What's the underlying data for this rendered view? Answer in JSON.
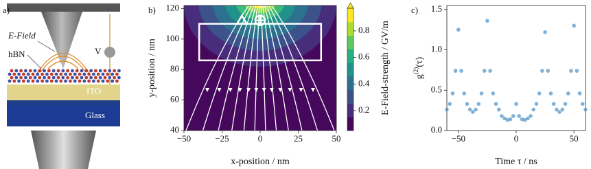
{
  "panel_a": {
    "label": "a)",
    "efield": "E-Field",
    "hbn": "hBN",
    "voltage": "V",
    "ito": "ITO",
    "glass": "Glass"
  },
  "chart_data": [
    {
      "type": "heatmap",
      "panel_label": "b)",
      "xlabel": "x-position / nm",
      "ylabel": "y-position / nm",
      "xlim": [
        -50,
        50
      ],
      "xticks": [
        {
          "value": -50,
          "label": "−50"
        },
        {
          "value": -25,
          "label": "−25"
        },
        0,
        25,
        50
      ],
      "ylim": [
        40,
        122
      ],
      "yticks": [
        40,
        60,
        80,
        100,
        120
      ],
      "colorbar_label": "E-Field-strength / GV/m",
      "clim": [
        0.05,
        0.97
      ],
      "cticks": [
        0.2,
        0.4,
        0.6,
        0.8
      ]
    },
    {
      "type": "scatter",
      "panel_label": "c)",
      "xlabel": "Time τ / ns",
      "ylabel": {
        "base": "g",
        "sup": "(2)",
        "rest": "(τ)"
      },
      "color": "#4a90c8",
      "xlim": [
        -60,
        60
      ],
      "xticks": [
        {
          "value": -50,
          "label": "−50"
        },
        0,
        50
      ],
      "ylim": [
        0,
        1.55
      ],
      "yticks": [
        {
          "value": 0,
          "label": "0.0"
        },
        0.5,
        {
          "value": 1,
          "label": "1.0"
        },
        1.5
      ],
      "x": [
        -60,
        -57.5,
        -55,
        -52.5,
        -50,
        -47.5,
        -45,
        -42.5,
        -40,
        -37.5,
        -35,
        -32.5,
        -30,
        -27.5,
        -25,
        -22.5,
        -20,
        -17.5,
        -15,
        -12.5,
        -10,
        -7.5,
        -5,
        -2.5,
        0,
        2.5,
        5,
        7.5,
        10,
        12.5,
        15,
        17.5,
        20,
        22.5,
        25,
        27.5,
        30,
        32.5,
        35,
        37.5,
        40,
        42.5,
        45,
        47.5,
        50,
        52.5,
        55,
        57.5,
        60
      ],
      "values": [
        0.26,
        0.33,
        0.46,
        0.74,
        1.25,
        0.74,
        0.46,
        0.33,
        0.26,
        0.23,
        0.26,
        0.33,
        0.46,
        0.74,
        1.36,
        0.74,
        0.46,
        0.33,
        0.26,
        0.18,
        0.15,
        0.13,
        0.14,
        0.18,
        0.33,
        0.18,
        0.14,
        0.13,
        0.15,
        0.18,
        0.26,
        0.33,
        0.46,
        0.74,
        1.22,
        0.74,
        0.46,
        0.33,
        0.26,
        0.23,
        0.26,
        0.33,
        0.46,
        0.74,
        1.3,
        0.74,
        0.46,
        0.33,
        0.26
      ]
    }
  ]
}
